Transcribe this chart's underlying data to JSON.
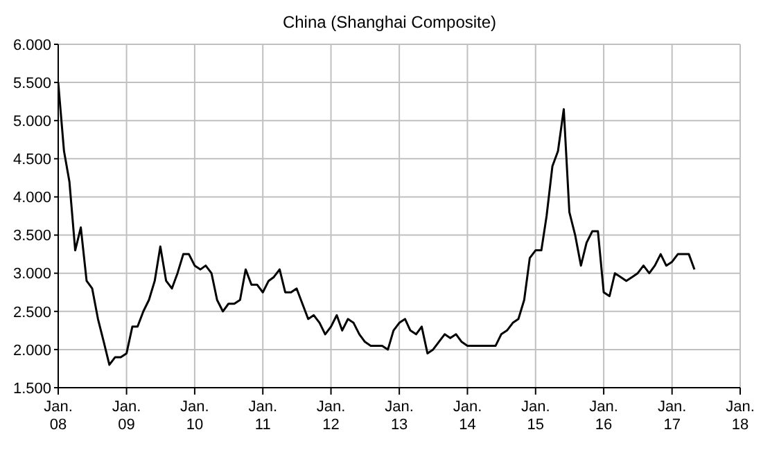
{
  "chart_data": {
    "type": "line",
    "title": "China (Shanghai Composite)",
    "x": [
      "2008-01",
      "2008-02",
      "2008-03",
      "2008-04",
      "2008-05",
      "2008-06",
      "2008-07",
      "2008-08",
      "2008-09",
      "2008-10",
      "2008-11",
      "2008-12",
      "2009-01",
      "2009-02",
      "2009-03",
      "2009-04",
      "2009-05",
      "2009-06",
      "2009-07",
      "2009-08",
      "2009-09",
      "2009-10",
      "2009-11",
      "2009-12",
      "2010-01",
      "2010-02",
      "2010-03",
      "2010-04",
      "2010-05",
      "2010-06",
      "2010-07",
      "2010-08",
      "2010-09",
      "2010-10",
      "2010-11",
      "2010-12",
      "2011-01",
      "2011-02",
      "2011-03",
      "2011-04",
      "2011-05",
      "2011-06",
      "2011-07",
      "2011-08",
      "2011-09",
      "2011-10",
      "2011-11",
      "2011-12",
      "2012-01",
      "2012-02",
      "2012-03",
      "2012-04",
      "2012-05",
      "2012-06",
      "2012-07",
      "2012-08",
      "2012-09",
      "2012-10",
      "2012-11",
      "2012-12",
      "2013-01",
      "2013-02",
      "2013-03",
      "2013-04",
      "2013-05",
      "2013-06",
      "2013-07",
      "2013-08",
      "2013-09",
      "2013-10",
      "2013-11",
      "2013-12",
      "2014-01",
      "2014-02",
      "2014-03",
      "2014-04",
      "2014-05",
      "2014-06",
      "2014-07",
      "2014-08",
      "2014-09",
      "2014-10",
      "2014-11",
      "2014-12",
      "2015-01",
      "2015-02",
      "2015-03",
      "2015-04",
      "2015-05",
      "2015-06",
      "2015-07",
      "2015-08",
      "2015-09",
      "2015-10",
      "2015-11",
      "2015-12",
      "2016-01",
      "2016-02",
      "2016-03",
      "2016-04",
      "2016-05",
      "2016-06",
      "2016-07",
      "2016-08",
      "2016-09",
      "2016-10",
      "2016-11",
      "2016-12",
      "2017-01",
      "2017-02",
      "2017-03",
      "2017-04",
      "2017-05"
    ],
    "series": [
      {
        "color": "#000000",
        "values": [
          5500,
          4600,
          4200,
          3300,
          3600,
          2900,
          2800,
          2400,
          2100,
          1800,
          1900,
          1900,
          1950,
          2300,
          2300,
          2500,
          2650,
          2900,
          3350,
          2900,
          2800,
          3000,
          3250,
          3250,
          3100,
          3050,
          3100,
          3000,
          2650,
          2500,
          2600,
          2600,
          2650,
          3050,
          2850,
          2850,
          2750,
          2900,
          2950,
          3050,
          2750,
          2750,
          2800,
          2600,
          2400,
          2450,
          2350,
          2200,
          2300,
          2450,
          2250,
          2400,
          2350,
          2200,
          2100,
          2050,
          2050,
          2050,
          2000,
          2250,
          2350,
          2400,
          2250,
          2200,
          2300,
          1950,
          2000,
          2100,
          2200,
          2150,
          2200,
          2100,
          2050,
          2050,
          2050,
          2050,
          2050,
          2050,
          2200,
          2250,
          2350,
          2400,
          2650,
          3200,
          3300,
          3300,
          3750,
          4400,
          4600,
          5150,
          3800,
          3500,
          3100,
          3400,
          3550,
          3550,
          2750,
          2700,
          3000,
          2950,
          2900,
          2950,
          3000,
          3100,
          3000,
          3100,
          3250,
          3100,
          3150,
          3250,
          3250,
          3250,
          3050
        ]
      }
    ],
    "xlim": [
      "2008-01",
      "2018-01"
    ],
    "xticks": [
      {
        "value": "2008-01",
        "label": "Jan. 08"
      },
      {
        "value": "2009-01",
        "label": "Jan. 09"
      },
      {
        "value": "2010-01",
        "label": "Jan. 10"
      },
      {
        "value": "2011-01",
        "label": "Jan. 11"
      },
      {
        "value": "2012-01",
        "label": "Jan. 12"
      },
      {
        "value": "2013-01",
        "label": "Jan. 13"
      },
      {
        "value": "2014-01",
        "label": "Jan. 14"
      },
      {
        "value": "2015-01",
        "label": "Jan. 15"
      },
      {
        "value": "2016-01",
        "label": "Jan. 16"
      },
      {
        "value": "2017-01",
        "label": "Jan. 17"
      },
      {
        "value": "2018-01",
        "label": "Jan. 18"
      }
    ],
    "ylim": [
      1500,
      6000
    ],
    "yticks": [
      {
        "value": 1500,
        "label": "1.500"
      },
      {
        "value": 2000,
        "label": "2.000"
      },
      {
        "value": 2500,
        "label": "2.500"
      },
      {
        "value": 3000,
        "label": "3.000"
      },
      {
        "value": 3500,
        "label": "3.500"
      },
      {
        "value": 4000,
        "label": "4.000"
      },
      {
        "value": 4500,
        "label": "4.500"
      },
      {
        "value": 5000,
        "label": "5.000"
      },
      {
        "value": 5500,
        "label": "5.500"
      },
      {
        "value": 6000,
        "label": "6.000"
      }
    ],
    "grid": true,
    "marker": "none",
    "line_style": "solid"
  }
}
